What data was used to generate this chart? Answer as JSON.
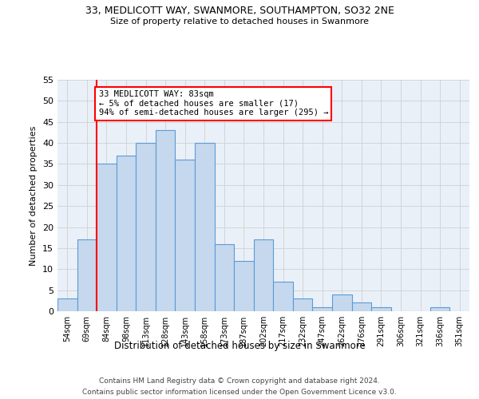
{
  "title": "33, MEDLICOTT WAY, SWANMORE, SOUTHAMPTON, SO32 2NE",
  "subtitle": "Size of property relative to detached houses in Swanmore",
  "xlabel": "Distribution of detached houses by size in Swanmore",
  "ylabel": "Number of detached properties",
  "bar_labels": [
    "54sqm",
    "69sqm",
    "84sqm",
    "98sqm",
    "113sqm",
    "128sqm",
    "143sqm",
    "158sqm",
    "173sqm",
    "187sqm",
    "202sqm",
    "217sqm",
    "232sqm",
    "247sqm",
    "262sqm",
    "276sqm",
    "291sqm",
    "306sqm",
    "321sqm",
    "336sqm",
    "351sqm"
  ],
  "bar_values": [
    3,
    17,
    35,
    37,
    40,
    43,
    36,
    40,
    16,
    12,
    17,
    7,
    3,
    1,
    4,
    2,
    1,
    0,
    0,
    1,
    0
  ],
  "bar_color": "#c5d8ed",
  "bar_edge_color": "#5b9bd5",
  "background_color": "#ffffff",
  "plot_bg_color": "#eaf0f8",
  "grid_color": "#d0d0d0",
  "ylim": [
    0,
    55
  ],
  "yticks": [
    0,
    5,
    10,
    15,
    20,
    25,
    30,
    35,
    40,
    45,
    50,
    55
  ],
  "property_line_x": 1.5,
  "annotation_line1": "33 MEDLICOTT WAY: 83sqm",
  "annotation_line2": "← 5% of detached houses are smaller (17)",
  "annotation_line3": "94% of semi-detached houses are larger (295) →",
  "footer_line1": "Contains HM Land Registry data © Crown copyright and database right 2024.",
  "footer_line2": "Contains public sector information licensed under the Open Government Licence v3.0."
}
